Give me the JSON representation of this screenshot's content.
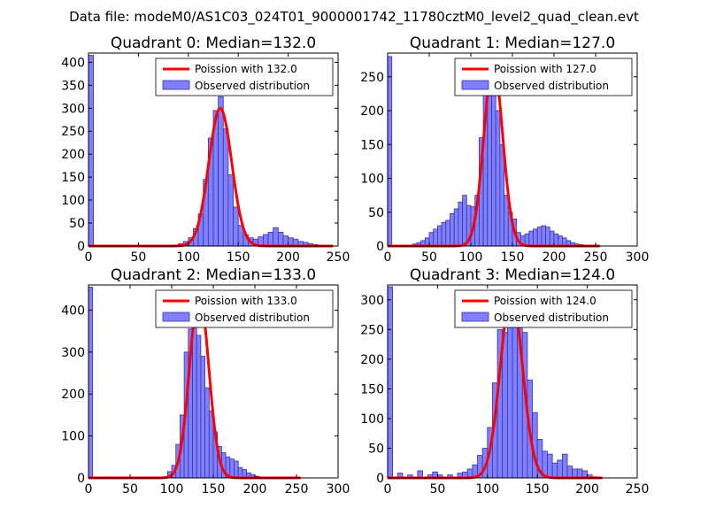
{
  "figure_title": "Data file: modeM0/AS1C03_024T01_9000001742_11780cztM0_level2_quad_clean.evt",
  "colors": {
    "bar_fill": "#8080ff",
    "bar_edge": "#3333aa",
    "fit_line": "#ff0000",
    "legend_patch": "#8080ff"
  },
  "chart_data": [
    {
      "type": "bar",
      "title": "Quadrant 0: Median=132.0",
      "xlim": [
        0,
        250
      ],
      "ylim": [
        0,
        420
      ],
      "xticks": [
        0,
        50,
        100,
        150,
        200,
        250
      ],
      "yticks": [
        0,
        50,
        100,
        150,
        200,
        250,
        300,
        350,
        400
      ],
      "bin_width": 5,
      "bins_start": [
        0,
        85,
        90,
        95,
        100,
        105,
        110,
        115,
        120,
        125,
        130,
        135,
        140,
        145,
        150,
        155,
        160,
        165,
        170,
        175,
        180,
        185,
        190,
        195,
        200,
        205,
        210,
        215,
        220,
        225,
        230
      ],
      "counts": [
        415,
        2,
        5,
        10,
        18,
        38,
        70,
        145,
        235,
        295,
        325,
        255,
        155,
        85,
        45,
        25,
        18,
        15,
        20,
        25,
        30,
        40,
        30,
        22,
        18,
        15,
        10,
        8,
        5,
        3,
        1
      ],
      "fit": {
        "lambda": 132.0,
        "peak": 300,
        "sigma": 11.5,
        "x_range": [
          0,
          245
        ]
      },
      "legend": {
        "line_label": "Poission with 132.0",
        "bar_label": "Observed distribution",
        "loc": "upper-right"
      }
    },
    {
      "type": "bar",
      "title": "Quadrant 1: Median=127.0",
      "xlim": [
        0,
        300
      ],
      "ylim": [
        0,
        285
      ],
      "xticks": [
        0,
        50,
        100,
        150,
        200,
        250,
        300
      ],
      "yticks": [
        0,
        50,
        100,
        150,
        200,
        250
      ],
      "bin_width": 5,
      "bins_start": [
        0,
        30,
        35,
        40,
        45,
        50,
        55,
        60,
        65,
        70,
        75,
        80,
        85,
        90,
        95,
        100,
        105,
        110,
        115,
        120,
        125,
        130,
        135,
        140,
        145,
        150,
        155,
        160,
        165,
        170,
        175,
        180,
        185,
        190,
        195,
        200,
        205,
        210,
        215,
        220,
        225,
        230
      ],
      "counts": [
        280,
        3,
        5,
        8,
        12,
        20,
        25,
        30,
        35,
        38,
        48,
        55,
        65,
        75,
        60,
        58,
        75,
        160,
        240,
        270,
        255,
        200,
        150,
        75,
        50,
        40,
        20,
        15,
        18,
        22,
        25,
        28,
        30,
        28,
        22,
        18,
        15,
        12,
        8,
        5,
        3,
        2
      ],
      "fit": {
        "lambda": 127.0,
        "peak": 270,
        "sigma": 11.3,
        "x_range": [
          0,
          255
        ]
      },
      "legend": {
        "line_label": "Poission with 127.0",
        "bar_label": "Observed distribution",
        "loc": "upper-right"
      }
    },
    {
      "type": "bar",
      "title": "Quadrant 2: Median=133.0",
      "xlim": [
        0,
        300
      ],
      "ylim": [
        0,
        460
      ],
      "xticks": [
        0,
        50,
        100,
        150,
        200,
        250,
        300
      ],
      "yticks": [
        0,
        100,
        200,
        300,
        400
      ],
      "bin_width": 5,
      "bins_start": [
        0,
        95,
        100,
        105,
        110,
        115,
        120,
        125,
        130,
        135,
        140,
        145,
        150,
        155,
        160,
        165,
        170,
        175,
        180,
        185,
        190,
        195,
        200,
        205
      ],
      "counts": [
        455,
        15,
        30,
        80,
        150,
        300,
        355,
        385,
        340,
        290,
        215,
        160,
        110,
        75,
        60,
        50,
        45,
        40,
        25,
        20,
        12,
        8,
        4,
        2
      ],
      "fit": {
        "lambda": 133.0,
        "peak": 440,
        "sigma": 11.5,
        "x_range": [
          0,
          255
        ]
      },
      "legend": {
        "line_label": "Poission with 133.0",
        "bar_label": "Observed distribution",
        "loc": "upper-right"
      }
    },
    {
      "type": "bar",
      "title": "Quadrant 3: Median=124.0",
      "xlim": [
        0,
        250
      ],
      "ylim": [
        0,
        325
      ],
      "xticks": [
        0,
        50,
        100,
        150,
        200,
        250
      ],
      "yticks": [
        0,
        50,
        100,
        150,
        200,
        250,
        300
      ],
      "bin_width": 5,
      "bins_start": [
        0,
        10,
        20,
        30,
        40,
        45,
        50,
        60,
        70,
        75,
        80,
        85,
        90,
        95,
        100,
        105,
        110,
        115,
        120,
        125,
        130,
        135,
        140,
        145,
        150,
        155,
        160,
        165,
        170,
        175,
        180,
        185,
        190,
        195,
        200,
        205
      ],
      "counts": [
        322,
        8,
        5,
        12,
        5,
        10,
        5,
        5,
        8,
        10,
        15,
        22,
        38,
        50,
        85,
        160,
        250,
        245,
        265,
        300,
        310,
        245,
        165,
        110,
        65,
        45,
        40,
        25,
        30,
        40,
        20,
        15,
        15,
        12,
        5,
        2
      ],
      "fit": {
        "lambda": 124.0,
        "peak": 310,
        "sigma": 11.1,
        "x_range": [
          0,
          215
        ]
      },
      "legend": {
        "line_label": "Poission with 124.0",
        "bar_label": "Observed distribution",
        "loc": "upper-right"
      }
    }
  ]
}
